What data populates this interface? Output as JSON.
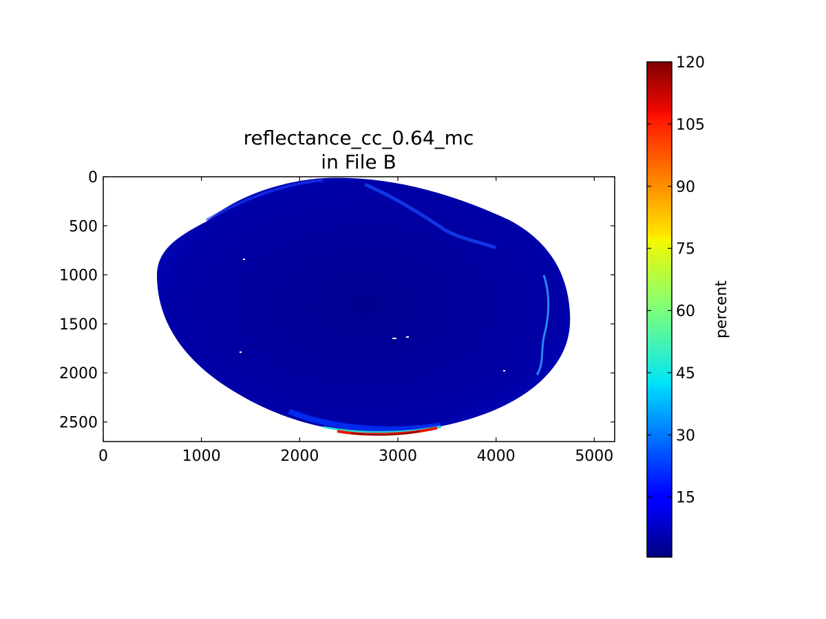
{
  "chart_data": {
    "type": "heatmap",
    "title": "reflectance_cc_0.64_mc",
    "subtitle": "in File B",
    "xlabel": "",
    "ylabel": "",
    "x_ticks": [
      "0",
      "1000",
      "2000",
      "3000",
      "4000",
      "5000"
    ],
    "y_ticks": [
      "0",
      "500",
      "1000",
      "1500",
      "2000",
      "2500"
    ],
    "xlim": [
      0,
      5208
    ],
    "ylim": [
      2700,
      0
    ],
    "colorbar": {
      "label": "percent",
      "range": [
        0.5,
        120
      ],
      "ticks": [
        "15",
        "30",
        "45",
        "60",
        "75",
        "90",
        "105",
        "120"
      ],
      "colormap": "jet"
    },
    "image": {
      "description_kind": "full-disk reflectance image shown as an ellipse",
      "disk_center_x": 2640,
      "disk_center_y": 1330,
      "typical_value": 6,
      "max_value": 120,
      "high_value_region": "southern limb near x 2350-3450"
    },
    "grid": false,
    "legend": "none"
  },
  "colors": {
    "jet_low": "#00007f",
    "jet_mid": "#7fff7f",
    "jet_high": "#7f0000",
    "background": "#ffffff",
    "axes": "#000000"
  }
}
